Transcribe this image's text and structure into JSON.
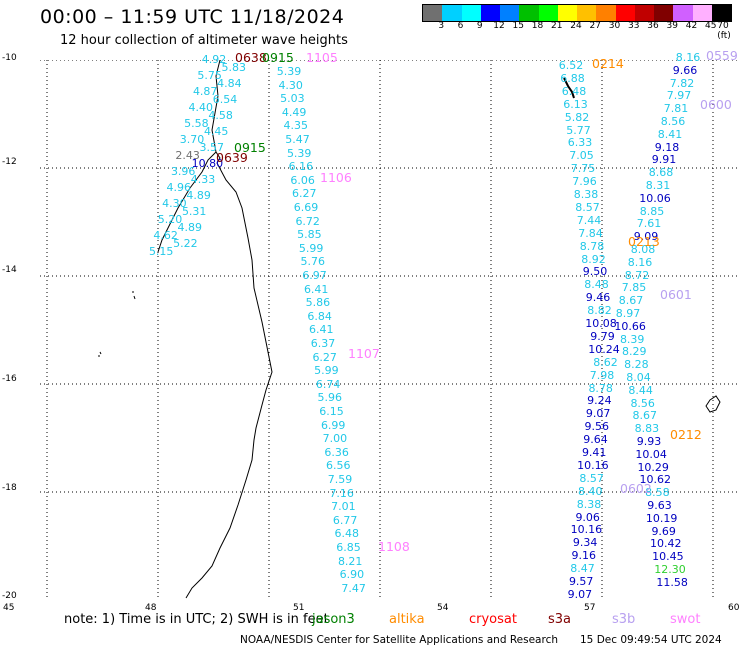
{
  "header": {
    "title": "00:00 – 11:59 UTC 11/18/2024",
    "subtitle": "12 hour collection of altimeter wave heights"
  },
  "legend": {
    "colors": [
      "#707070",
      "#00d0ff",
      "#00ffff",
      "#0000ff",
      "#0080ff",
      "#00c000",
      "#00ff00",
      "#ffff00",
      "#ffc000",
      "#ff8000",
      "#ff0000",
      "#c00000",
      "#800000",
      "#d060ff",
      "#ffb0ff",
      "#000000"
    ],
    "labels": [
      "3",
      "6",
      "9",
      "12",
      "15",
      "18",
      "21",
      "24",
      "27",
      "30",
      "33",
      "36",
      "39",
      "42",
      "45",
      "70 (ft)"
    ]
  },
  "axes": {
    "lon_ticks": [
      "45",
      "48",
      "51",
      "54",
      "57",
      "60"
    ],
    "lat_ticks": [
      "-10",
      "-12",
      "-14",
      "-16",
      "-18",
      "-20"
    ]
  },
  "passes": [
    {
      "label": "0638",
      "color": "#800000"
    },
    {
      "label": "0915",
      "color": "#008000"
    },
    {
      "label": "1105",
      "color": "#ff80ff"
    },
    {
      "label": "0214",
      "color": "#ff8c00"
    },
    {
      "label": "0559",
      "color": "#b8a0f0"
    },
    {
      "label": "0600",
      "color": "#b8a0f0"
    },
    {
      "label": "0915",
      "color": "#008000"
    },
    {
      "label": "0639",
      "color": "#800000"
    },
    {
      "label": "1106",
      "color": "#ff80ff"
    },
    {
      "label": "0213",
      "color": "#ff8c00"
    },
    {
      "label": "0601",
      "color": "#b8a0f0"
    },
    {
      "label": "1107",
      "color": "#ff80ff"
    },
    {
      "label": "0212",
      "color": "#ff8c00"
    },
    {
      "label": "0602",
      "color": "#b8a0f0"
    },
    {
      "label": "1108",
      "color": "#ff80ff"
    }
  ],
  "track_values": {
    "madagascar_left": [
      "4.92",
      "5.83",
      "5.75",
      "4.84",
      "4.87",
      "6.54",
      "4.40",
      "4.58",
      "5.58",
      "4.45",
      "3.70",
      "3.57",
      "2.43",
      "10.80",
      "3.96",
      "4.33",
      "4.96",
      "4.89",
      "4.30",
      "5.31",
      "5.20",
      "4.89",
      "4.62",
      "5.22",
      "5.15"
    ],
    "col_1105": [
      "5.39",
      "4.30",
      "5.03",
      "4.49",
      "4.35",
      "5.47",
      "5.39",
      "6.16",
      "6.06",
      "6.27",
      "6.69",
      "6.72",
      "5.85",
      "5.99",
      "5.76",
      "6.97",
      "6.41",
      "5.86",
      "6.84",
      "6.41",
      "6.37",
      "6.27",
      "5.99",
      "6.74",
      "5.96",
      "6.15",
      "6.99",
      "7.00",
      "6.36",
      "6.56",
      "7.59",
      "7.16",
      "7.01",
      "6.77",
      "6.48",
      "6.85",
      "8.21",
      "6.90",
      "7.47"
    ],
    "col_0214": [
      "6.52",
      "6.88",
      "6.48",
      "6.13",
      "5.82",
      "5.77",
      "6.33",
      "7.05",
      "7.75",
      "7.96",
      "8.38",
      "8.57",
      "7.44",
      "7.84",
      "8.78",
      "8.92",
      "9.50",
      "8.48",
      "9.46",
      "8.82",
      "10.08",
      "9.79",
      "10.24",
      "8.62",
      "7.98",
      "8.78",
      "9.24",
      "9.07",
      "9.56",
      "9.64",
      "9.41",
      "10.16",
      "8.57",
      "8.40",
      "8.38",
      "9.06",
      "10.16",
      "9.34",
      "9.16",
      "8.47",
      "9.57",
      "9.07"
    ],
    "col_0559": [
      "8.16",
      "9.66",
      "7.82",
      "7.97",
      "7.81",
      "8.56",
      "8.41",
      "9.18",
      "9.91",
      "8.68",
      "8.31",
      "10.06",
      "8.85",
      "7.61",
      "9.09",
      "8.08",
      "8.16",
      "8.72",
      "7.85",
      "8.67",
      "8.97",
      "10.66",
      "8.39",
      "8.29",
      "8.28",
      "8.04",
      "8.44",
      "8.56",
      "8.67",
      "8.83",
      "9.93",
      "10.04",
      "10.29",
      "10.62",
      "8.58",
      "9.63",
      "10.19",
      "9.69",
      "10.42",
      "10.45",
      "12.30",
      "11.58"
    ]
  },
  "footer": {
    "note": "note: 1) Time is in UTC; 2) SWH is in feet",
    "satellites": [
      {
        "name": "jason3",
        "color": "#008000"
      },
      {
        "name": "altika",
        "color": "#ff8c00"
      },
      {
        "name": "cryosat",
        "color": "#ff0000"
      },
      {
        "name": "s3a",
        "color": "#800000"
      },
      {
        "name": "s3b",
        "color": "#b8a0f0"
      },
      {
        "name": "swot",
        "color": "#ff80ff"
      }
    ],
    "credit": "NOAA/NESDIS Center for Satellite Applications and Research",
    "timestamp": "15 Dec 09:49:54 UTC 2024"
  }
}
